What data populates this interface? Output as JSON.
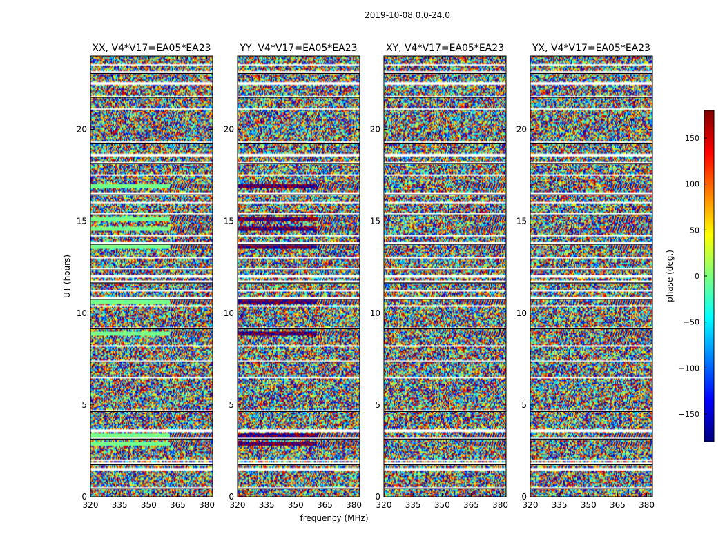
{
  "figure": {
    "suptitle": "2019-10-08 0.0-24.0",
    "colorbar": {
      "label": "phase (deg.)",
      "range": [
        -180,
        180
      ],
      "ticks": [
        150,
        100,
        50,
        0,
        -50,
        -100,
        -150
      ],
      "tick_labels": [
        "150",
        "100",
        "50",
        "0",
        "−50",
        "−100",
        "−150"
      ],
      "colormap": "jet",
      "colors": [
        "#00007f",
        "#0000ff",
        "#007fff",
        "#00ffff",
        "#7fff7f",
        "#ffff00",
        "#ff7f00",
        "#ff0000",
        "#7f0000"
      ]
    }
  },
  "chart_data": [
    {
      "type": "heatmap",
      "title": "XX, V4*V17=EA05*EA23",
      "xlabel": "",
      "ylabel": "UT (hours)",
      "xlim": [
        320,
        383
      ],
      "ylim": [
        0,
        24
      ],
      "x_ticks": [
        320,
        335,
        350,
        365,
        380
      ],
      "y_ticks": [
        0,
        5,
        10,
        15,
        20
      ],
      "value": "phase (deg.)",
      "value_range": [
        -180,
        180
      ]
    },
    {
      "type": "heatmap",
      "title": "YY, V4*V17=EA05*EA23",
      "xlabel": "frequency (MHz)",
      "ylabel": "",
      "xlim": [
        320,
        383
      ],
      "ylim": [
        0,
        24
      ],
      "x_ticks": [
        320,
        335,
        350,
        365,
        380
      ],
      "y_ticks": [
        0,
        5,
        10,
        15,
        20
      ],
      "value": "phase (deg.)",
      "value_range": [
        -180,
        180
      ]
    },
    {
      "type": "heatmap",
      "title": "XY, V4*V17=EA05*EA23",
      "xlabel": "",
      "ylabel": "",
      "xlim": [
        320,
        383
      ],
      "ylim": [
        0,
        24
      ],
      "x_ticks": [
        320,
        335,
        350,
        365,
        380
      ],
      "y_ticks": [
        0,
        5,
        10,
        15,
        20
      ],
      "value": "phase (deg.)",
      "value_range": [
        -180,
        180
      ]
    },
    {
      "type": "heatmap",
      "title": "YX, V4*V17=EA05*EA23",
      "xlabel": "",
      "ylabel": "",
      "xlim": [
        320,
        383
      ],
      "ylim": [
        0,
        24
      ],
      "x_ticks": [
        320,
        335,
        350,
        365,
        380
      ],
      "y_ticks": [
        0,
        5,
        10,
        15,
        20
      ],
      "value": "phase (deg.)",
      "value_range": [
        -180,
        180
      ]
    }
  ],
  "flagged_gaps_hours": [
    0.5,
    1.5,
    1.8,
    2.0,
    3.2,
    3.6,
    4.7,
    6.5,
    7.4,
    8.2,
    9.2,
    10.4,
    10.8,
    11.2,
    11.7,
    12.0,
    12.4,
    13.0,
    13.8,
    14.2,
    15.4,
    16.0,
    16.5,
    17.5,
    18.2,
    18.6,
    19.3,
    21.1,
    21.8,
    22.5,
    23.1,
    23.5
  ],
  "coherent_bands_hours": [
    2.9,
    3.3,
    8.9,
    10.6,
    13.6,
    14.6,
    15.1,
    16.9
  ]
}
